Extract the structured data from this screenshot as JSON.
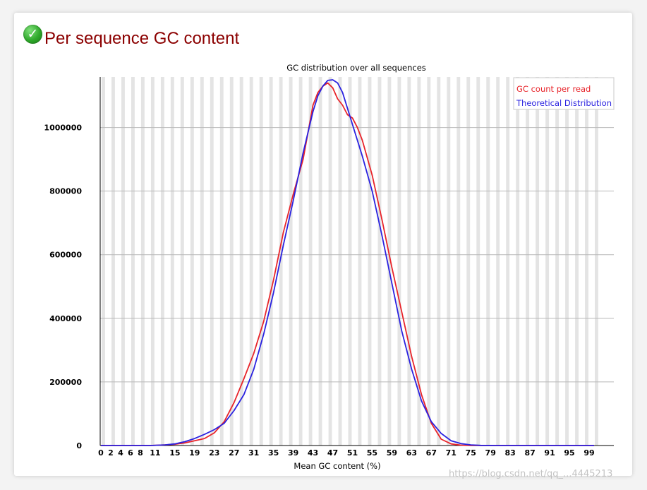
{
  "header": {
    "status_icon": "check-circle-icon",
    "title": "Per sequence GC content"
  },
  "watermark": "https://blog.csdn.net/qq_...4445213",
  "colors": {
    "title": "#8b0000",
    "series_red": "#e8242a",
    "series_blue": "#2a22e0",
    "stripe": "#e4e4e4",
    "grid": "#b8b8b8"
  },
  "chart_data": {
    "type": "line",
    "title": "GC distribution over all sequences",
    "xlabel": "Mean GC content (%)",
    "ylabel": "",
    "xlim": [
      0,
      100
    ],
    "ylim": [
      0,
      1150000
    ],
    "yticks": [
      0,
      200000,
      400000,
      600000,
      800000,
      1000000
    ],
    "xtick_labels": [
      "0",
      "2",
      "4",
      "6",
      "8",
      "11",
      "15",
      "19",
      "23",
      "27",
      "31",
      "35",
      "39",
      "43",
      "47",
      "51",
      "55",
      "59",
      "63",
      "67",
      "71",
      "75",
      "79",
      "83",
      "87",
      "91",
      "95",
      "99"
    ],
    "xtick_values": [
      0,
      2,
      4,
      6,
      8,
      11,
      15,
      19,
      23,
      27,
      31,
      35,
      39,
      43,
      47,
      51,
      55,
      59,
      63,
      67,
      71,
      75,
      79,
      83,
      87,
      91,
      95,
      99
    ],
    "legend_position": "top-right",
    "grid": true,
    "series": [
      {
        "name": "GC count per read",
        "color": "#e8242a",
        "x": [
          0,
          5,
          10,
          13,
          15,
          17,
          19,
          21,
          23,
          25,
          27,
          29,
          31,
          33,
          35,
          37,
          39,
          41,
          43,
          44,
          45,
          46,
          47,
          48,
          49,
          50,
          51,
          52,
          53,
          55,
          57,
          59,
          61,
          63,
          65,
          67,
          69,
          71,
          73,
          75,
          80,
          90,
          100
        ],
        "y": [
          0,
          0,
          0,
          2000,
          4000,
          8000,
          15000,
          22000,
          40000,
          75000,
          135000,
          210000,
          290000,
          390000,
          520000,
          670000,
          790000,
          900000,
          1070000,
          1110000,
          1130000,
          1140000,
          1125000,
          1090000,
          1070000,
          1040000,
          1030000,
          1000000,
          960000,
          850000,
          710000,
          560000,
          420000,
          280000,
          160000,
          70000,
          20000,
          5000,
          1000,
          0,
          0,
          0,
          0
        ]
      },
      {
        "name": "Theoretical Distribution",
        "color": "#2a22e0",
        "x": [
          0,
          5,
          10,
          13,
          15,
          17,
          19,
          21,
          23,
          25,
          27,
          29,
          31,
          33,
          35,
          37,
          39,
          41,
          43,
          44,
          45,
          46,
          47,
          48,
          49,
          50,
          51,
          52,
          53,
          55,
          57,
          59,
          61,
          63,
          65,
          67,
          69,
          71,
          73,
          75,
          77,
          80,
          90,
          100
        ],
        "y": [
          0,
          0,
          0,
          2000,
          5000,
          12000,
          22000,
          35000,
          50000,
          70000,
          110000,
          160000,
          240000,
          350000,
          480000,
          630000,
          770000,
          920000,
          1050000,
          1100000,
          1130000,
          1148000,
          1150000,
          1140000,
          1110000,
          1060000,
          1010000,
          960000,
          910000,
          800000,
          660000,
          510000,
          360000,
          240000,
          140000,
          75000,
          38000,
          15000,
          6000,
          2000,
          500,
          0,
          0,
          0
        ]
      }
    ]
  }
}
